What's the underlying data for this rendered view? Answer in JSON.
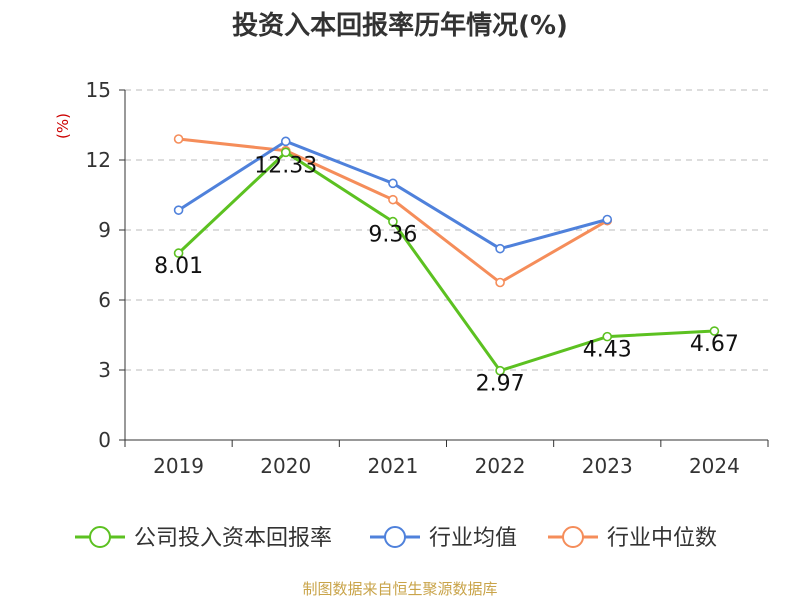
{
  "title": "投资入本回报率历年情况(%)",
  "source": "制图数据来自恒生聚源数据库",
  "colors": {
    "company": "#5cc121",
    "industry_avg": "#4f81db",
    "industry_median": "#f58d5a",
    "grid": "#bbbbbb",
    "axis": "#333333",
    "unit": "#cc0000"
  },
  "chart_data": {
    "type": "line",
    "title": "投资入本回报率历年情况(%)",
    "ylabel": "(%)",
    "xlabel": "",
    "ylim": [
      0,
      15
    ],
    "yticks": [
      0,
      3,
      6,
      9,
      12,
      15
    ],
    "ytick_labels": [
      "0",
      "3",
      "6",
      "9",
      "12",
      "15"
    ],
    "categories": [
      "2019",
      "2020",
      "2021",
      "2022",
      "2023",
      "2024"
    ],
    "legend_position": "bottom",
    "grid": true,
    "series": [
      {
        "key": "company",
        "name": "公司投入资本回报率",
        "values": [
          8.01,
          12.33,
          9.36,
          2.97,
          4.43,
          4.67
        ],
        "labels": [
          "8.01",
          "12.33",
          "9.36",
          "2.97",
          "4.43",
          "4.67"
        ]
      },
      {
        "key": "industry_avg",
        "name": "行业均值",
        "values": [
          9.85,
          12.8,
          11.0,
          8.2,
          9.45,
          null
        ]
      },
      {
        "key": "industry_median",
        "name": "行业中位数",
        "values": [
          12.9,
          12.4,
          10.3,
          6.75,
          9.4,
          null
        ]
      }
    ]
  }
}
